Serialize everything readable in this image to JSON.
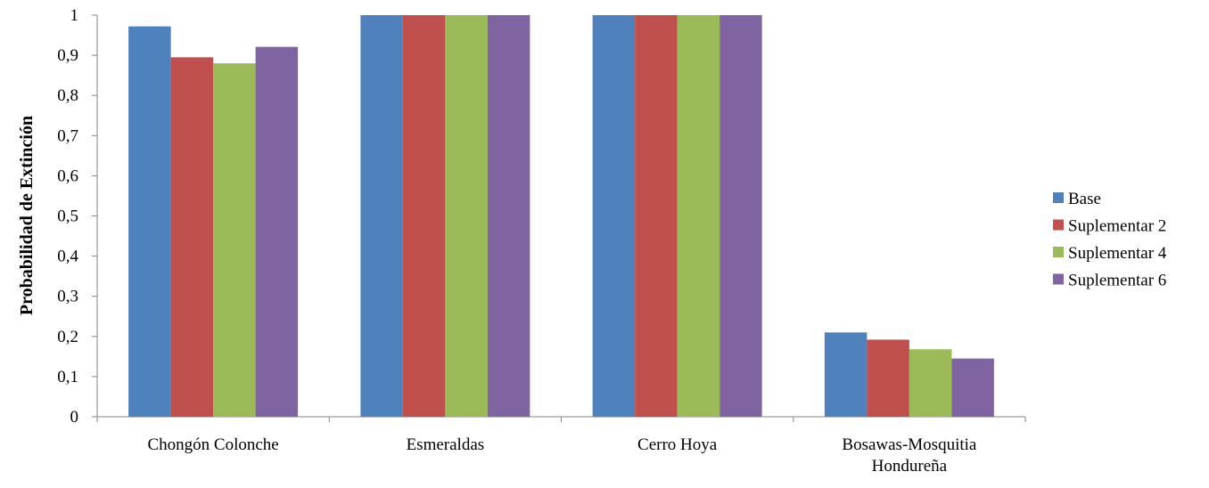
{
  "chart_data": {
    "type": "bar",
    "ylabel": "Probabilidad de Extinción",
    "xlabel": "",
    "ylim": [
      0,
      1
    ],
    "yticks": [
      0,
      0.1,
      0.2,
      0.3,
      0.4,
      0.5,
      0.6,
      0.7,
      0.8,
      0.9,
      1
    ],
    "ytick_labels": [
      "0",
      "0,1",
      "0,2",
      "0,3",
      "0,4",
      "0,5",
      "0,6",
      "0,7",
      "0,8",
      "0,9",
      "1"
    ],
    "categories": [
      [
        "Chongón Colonche"
      ],
      [
        "Esmeraldas"
      ],
      [
        "Cerro Hoya"
      ],
      [
        "Bosawas-Mosquitia",
        "Hondureña"
      ]
    ],
    "series": [
      {
        "name": "Base",
        "color": "#4F81BD",
        "values": [
          0.972,
          1.0,
          1.0,
          0.21
        ]
      },
      {
        "name": "Suplementar 2",
        "color": "#C0504D",
        "values": [
          0.895,
          1.0,
          1.0,
          0.192
        ]
      },
      {
        "name": "Suplementar 4",
        "color": "#9BBB59",
        "values": [
          0.88,
          1.0,
          1.0,
          0.168
        ]
      },
      {
        "name": "Suplementar 6",
        "color": "#8064A2",
        "values": [
          0.921,
          1.0,
          1.0,
          0.145
        ]
      }
    ],
    "legend_position": "right",
    "grid": false
  }
}
